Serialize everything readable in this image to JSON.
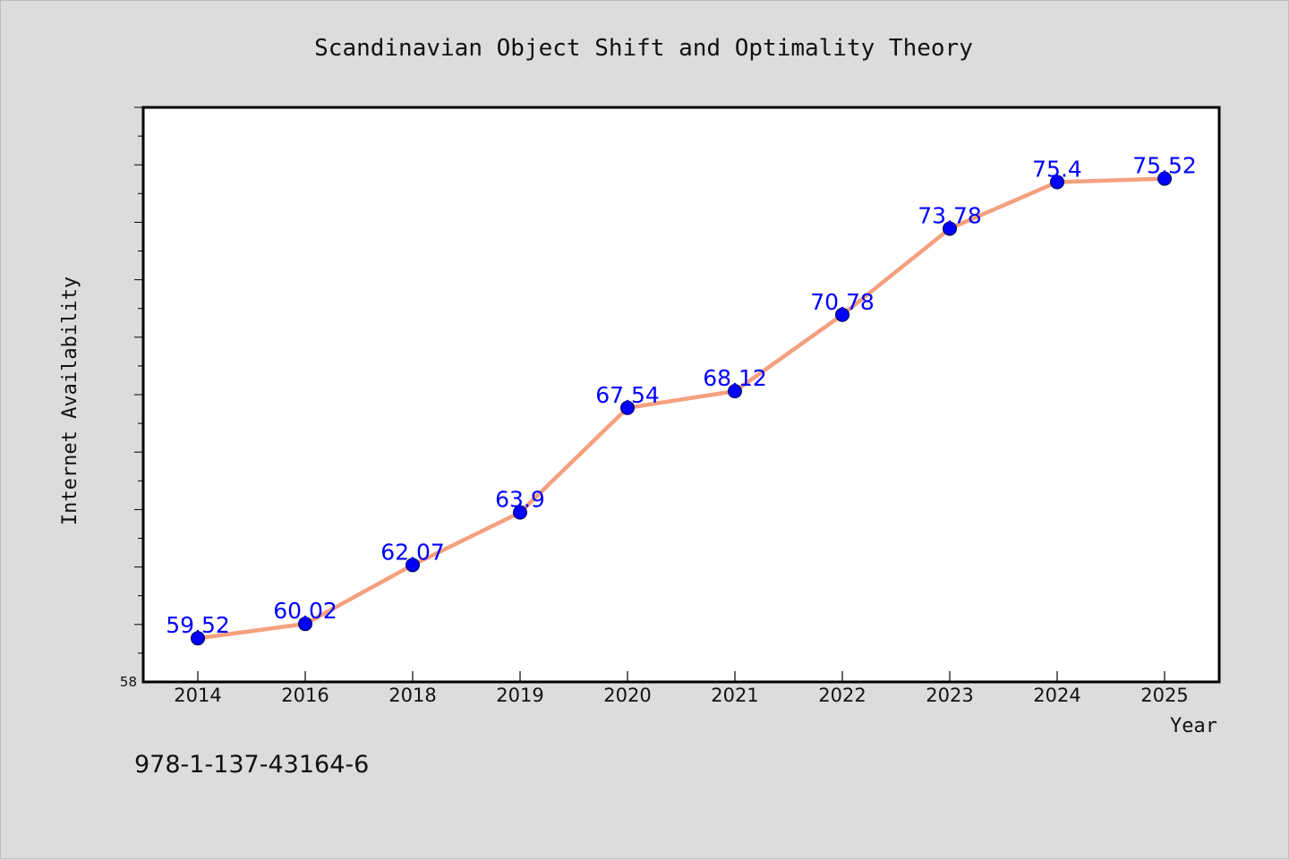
{
  "footer_text": "978-1-137-43164-6",
  "colors": {
    "background": "#dcdcdc",
    "plot_background": "#ffffff",
    "line": "#f4a07e",
    "marker": "#0000ff",
    "data_label": "#0000ff"
  },
  "chart_data": {
    "type": "line",
    "title": "Scandinavian Object Shift and Optimality Theory",
    "xlabel": "Year",
    "ylabel": "Internet Availability",
    "categories": [
      "2014",
      "2016",
      "2018",
      "2019",
      "2020",
      "2021",
      "2022",
      "2023",
      "2024",
      "2025"
    ],
    "values": [
      59.52,
      60.02,
      62.07,
      63.9,
      67.54,
      68.12,
      70.78,
      73.78,
      75.4,
      75.52
    ],
    "data_labels": [
      "59.52",
      "60.02",
      "62.07",
      "63.9",
      "67.54",
      "68.12",
      "70.78",
      "73.78",
      "75.4",
      "75.52"
    ],
    "ylim": [
      58,
      78
    ],
    "y_tick_labels": [
      "58"
    ],
    "grid": false,
    "legend": "none"
  }
}
